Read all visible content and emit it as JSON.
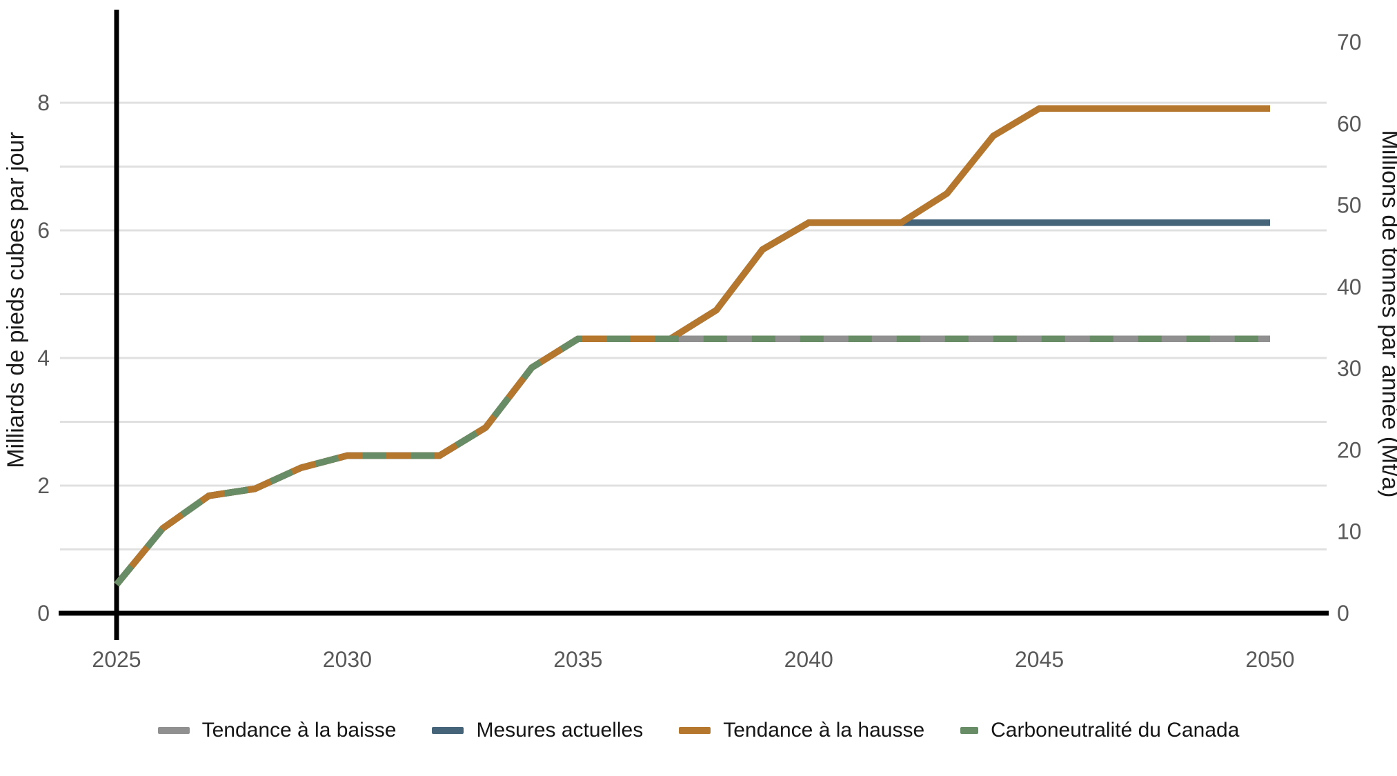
{
  "chart_data": {
    "type": "line",
    "title": "",
    "x": [
      2025,
      2026,
      2027,
      2028,
      2029,
      2030,
      2031,
      2032,
      2033,
      2034,
      2035,
      2036,
      2037,
      2038,
      2039,
      2040,
      2041,
      2042,
      2043,
      2044,
      2045,
      2046,
      2047,
      2048,
      2049,
      2050
    ],
    "x_ticks": [
      "2025",
      "2030",
      "2035",
      "2040",
      "2045",
      "2050"
    ],
    "left_axis": {
      "label": "Milliards de pieds cubes par jour",
      "ticks": [
        0,
        2,
        4,
        6,
        8
      ],
      "gridlines": [
        1,
        2,
        3,
        4,
        5,
        6,
        7,
        8
      ],
      "range": [
        0,
        9.45
      ]
    },
    "right_axis": {
      "label": "Millions de tonnes par année (Mt/a)",
      "ticks": [
        0,
        10,
        20,
        30,
        40,
        50,
        60,
        70
      ],
      "range": [
        0,
        73.9
      ]
    },
    "grid": "horizontal",
    "legend_position": "bottom",
    "colors": {
      "axis": "#000000",
      "gridline": "#e0e0e0",
      "tick_label": "#595959",
      "axis_title": "#1a1a1a"
    },
    "series": [
      {
        "name": "Tendance à la baisse",
        "color": "#909090",
        "style": "solid",
        "values": [
          0.45,
          1.33,
          1.84,
          1.95,
          2.28,
          2.47,
          2.47,
          2.47,
          2.91,
          3.85,
          4.3,
          4.3,
          4.3,
          4.3,
          4.3,
          4.3,
          4.3,
          4.3,
          4.3,
          4.3,
          4.3,
          4.3,
          4.3,
          4.3,
          4.3,
          4.3
        ]
      },
      {
        "name": "Mesures actuelles",
        "color": "#456379",
        "style": "solid",
        "values": [
          0.45,
          1.33,
          1.84,
          1.95,
          2.28,
          2.47,
          2.47,
          2.47,
          2.91,
          3.85,
          4.3,
          4.3,
          4.3,
          4.75,
          5.7,
          6.12,
          6.12,
          6.12,
          6.12,
          6.12,
          6.12,
          6.12,
          6.12,
          6.12,
          6.12,
          6.12
        ]
      },
      {
        "name": "Tendance à la hausse",
        "color": "#b5772d",
        "style": "solid",
        "values": [
          0.45,
          1.33,
          1.84,
          1.95,
          2.28,
          2.47,
          2.47,
          2.47,
          2.91,
          3.85,
          4.3,
          4.3,
          4.3,
          4.75,
          5.7,
          6.12,
          6.12,
          6.12,
          6.58,
          7.48,
          7.91,
          7.91,
          7.91,
          7.91,
          7.91,
          7.91
        ]
      },
      {
        "name": "Carboneutralité du Canada",
        "color": "#688c66",
        "style": "dashed",
        "values": [
          0.45,
          1.33,
          1.84,
          1.95,
          2.28,
          2.47,
          2.47,
          2.47,
          2.91,
          3.85,
          4.3,
          4.3,
          4.3,
          4.3,
          4.3,
          4.3,
          4.3,
          4.3,
          4.3,
          4.3,
          4.3,
          4.3,
          4.3,
          4.3,
          4.3,
          4.3
        ]
      }
    ]
  }
}
